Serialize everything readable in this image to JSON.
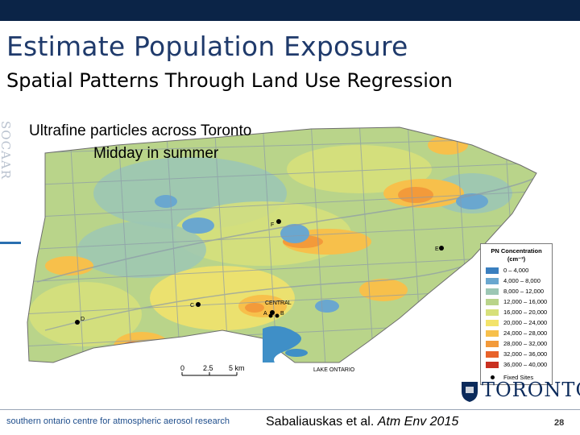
{
  "slide": {
    "title": "Estimate Population Exposure",
    "subtitle": "Spatial Patterns Through Land Use Regression",
    "side_watermark": "SOCAAR",
    "footer_left": "southern ontario centre for atmospheric aerosol research",
    "citation_prefix": "Sabaliauskas et al. ",
    "citation_journal": "Atm Env 2015",
    "page_number": "28",
    "logo_text": "TORONTO"
  },
  "map": {
    "caption_line1": "Ultrafine particles across Toronto",
    "caption_line2": "Midday in summer",
    "lake_label": "LAKE ONTARIO",
    "scale_bar": [
      "0",
      "2.5",
      "5 km"
    ],
    "sites": [
      {
        "label": "F"
      },
      {
        "label": "E"
      },
      {
        "label": "C"
      },
      {
        "label": "CENTRAL"
      },
      {
        "label": "A"
      },
      {
        "label": "B"
      },
      {
        "label": "D"
      }
    ]
  },
  "legend": {
    "title": "PN Concentration",
    "unit": "(cm⁻³)",
    "classes": [
      {
        "label": "0 – 4,000",
        "color": "#3a7fbf"
      },
      {
        "label": "4,000 – 8,000",
        "color": "#6aa7cf"
      },
      {
        "label": "8,000 – 12,000",
        "color": "#9cc7b4"
      },
      {
        "label": "12,000 – 16,000",
        "color": "#b9d48a"
      },
      {
        "label": "16,000 – 20,000",
        "color": "#d7e07a"
      },
      {
        "label": "20,000 – 24,000",
        "color": "#f3e36a"
      },
      {
        "label": "24,000 – 28,000",
        "color": "#f7c04b"
      },
      {
        "label": "28,000 – 32,000",
        "color": "#f39a3a"
      },
      {
        "label": "32,000 – 36,000",
        "color": "#e8622a"
      },
      {
        "label": "36,000 – 40,000",
        "color": "#c93020"
      }
    ],
    "fixed_sites_label": "Fixed Sites"
  },
  "colors": {
    "title_blue": "#1f3a6b",
    "top_bar": "#0b2447",
    "lake": "#3f8fc7"
  }
}
